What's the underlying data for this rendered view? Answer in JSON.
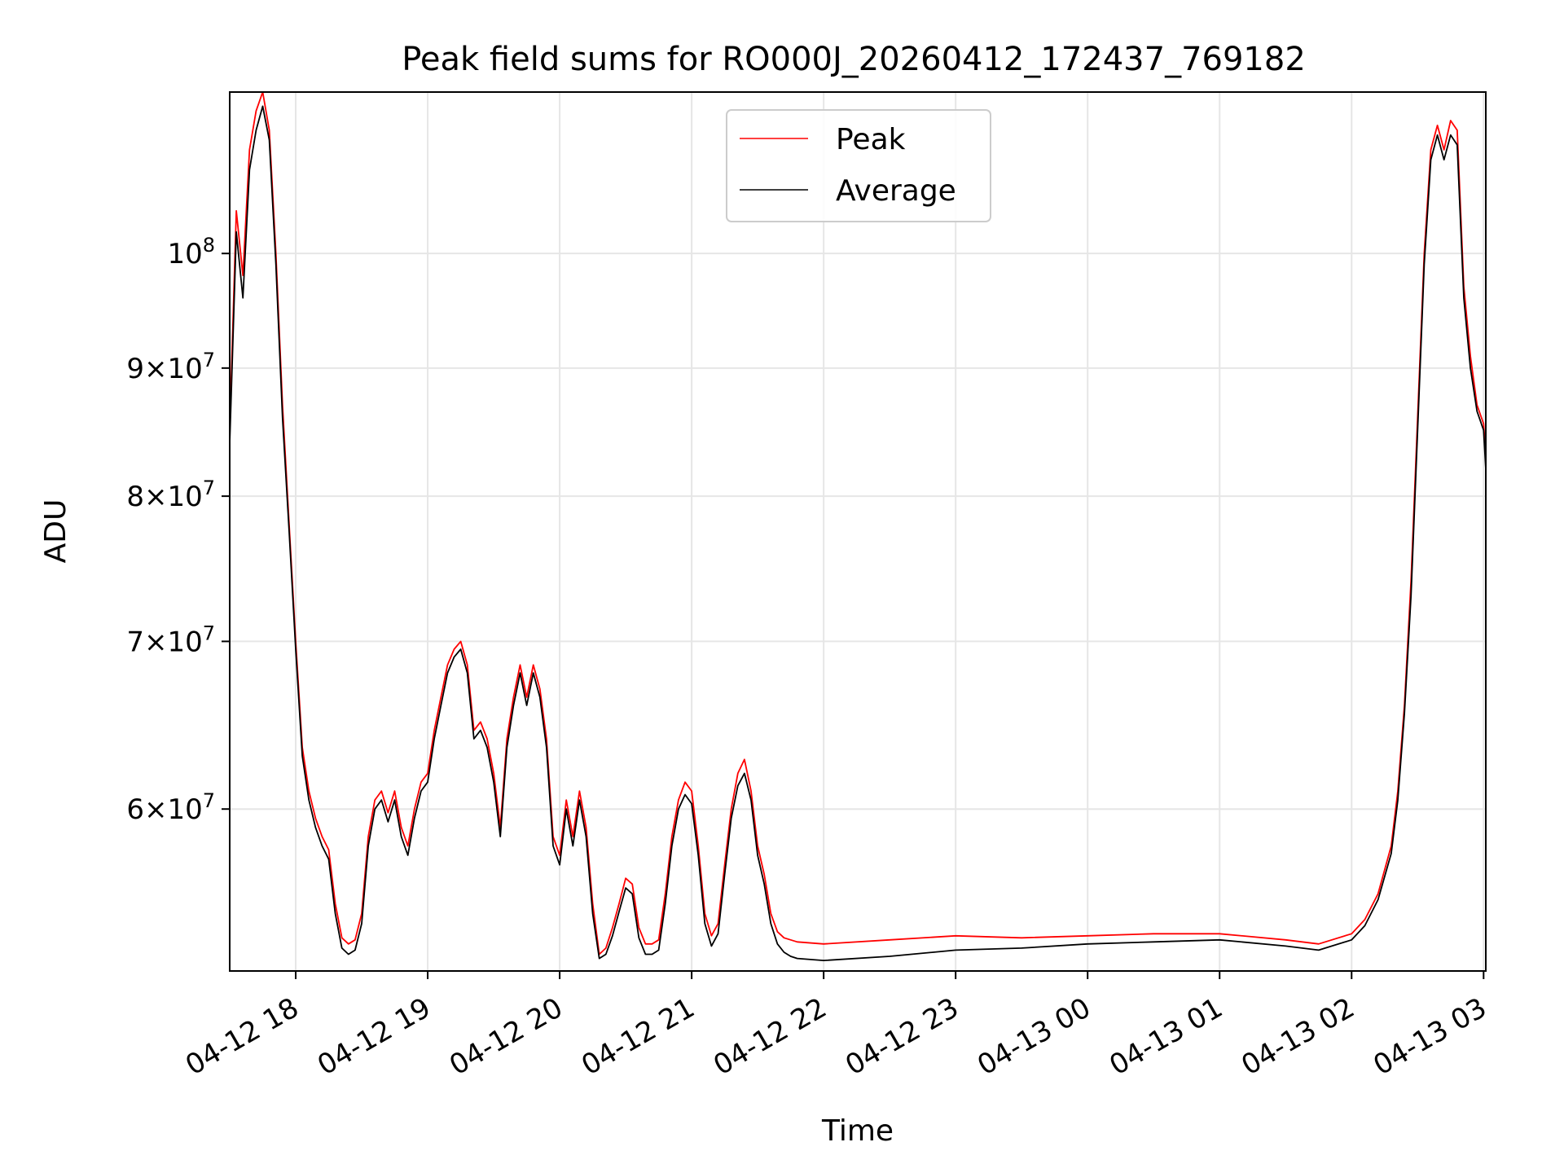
{
  "chart_data": {
    "type": "line",
    "title": "Peak field sums for RO000J_20260412_172437_769182",
    "xlabel": "Time",
    "ylabel": "ADU",
    "yscale": "log",
    "grid": true,
    "legend_position": "top-center",
    "x_range": [
      "2026-04-12 17:30",
      "2026-04-13 03:01"
    ],
    "y_range": [
      51700000,
      116000000
    ],
    "x_ticks": [
      {
        "t": "2026-04-12 18:00",
        "label": "04-12 18"
      },
      {
        "t": "2026-04-12 19:00",
        "label": "04-12 19"
      },
      {
        "t": "2026-04-12 20:00",
        "label": "04-12 20"
      },
      {
        "t": "2026-04-12 21:00",
        "label": "04-12 21"
      },
      {
        "t": "2026-04-12 22:00",
        "label": "04-12 22"
      },
      {
        "t": "2026-04-12 23:00",
        "label": "04-12 23"
      },
      {
        "t": "2026-04-13 00:00",
        "label": "04-13 00"
      },
      {
        "t": "2026-04-13 01:00",
        "label": "04-13 01"
      },
      {
        "t": "2026-04-13 02:00",
        "label": "04-13 02"
      },
      {
        "t": "2026-04-13 03:00",
        "label": "04-13 03"
      }
    ],
    "y_ticks": [
      {
        "value": 60000000,
        "mant": "6",
        "exp": "7"
      },
      {
        "value": 70000000,
        "mant": "7",
        "exp": "7"
      },
      {
        "value": 80000000,
        "mant": "8",
        "exp": "7"
      },
      {
        "value": 90000000,
        "mant": "9",
        "exp": "7"
      },
      {
        "value": 100000000,
        "mant": "",
        "exp": "8"
      }
    ],
    "series": [
      {
        "name": "Peak",
        "color": "#ff0000",
        "points": [
          [
            "2026-04-12 17:30",
            85000000
          ],
          [
            "2026-04-12 17:33",
            104000000
          ],
          [
            "2026-04-12 17:36",
            98000000
          ],
          [
            "2026-04-12 17:39",
            110000000
          ],
          [
            "2026-04-12 17:42",
            114000000
          ],
          [
            "2026-04-12 17:45",
            116000000
          ],
          [
            "2026-04-12 17:48",
            112000000
          ],
          [
            "2026-04-12 17:51",
            100000000
          ],
          [
            "2026-04-12 17:54",
            87000000
          ],
          [
            "2026-04-12 17:57",
            78000000
          ],
          [
            "2026-04-12 18:00",
            70000000
          ],
          [
            "2026-04-12 18:03",
            63500000
          ],
          [
            "2026-04-12 18:06",
            61000000
          ],
          [
            "2026-04-12 18:09",
            59500000
          ],
          [
            "2026-04-12 18:12",
            58500000
          ],
          [
            "2026-04-12 18:15",
            57800000
          ],
          [
            "2026-04-12 18:18",
            55000000
          ],
          [
            "2026-04-12 18:21",
            53300000
          ],
          [
            "2026-04-12 18:24",
            53000000
          ],
          [
            "2026-04-12 18:27",
            53200000
          ],
          [
            "2026-04-12 18:30",
            54500000
          ],
          [
            "2026-04-12 18:33",
            58500000
          ],
          [
            "2026-04-12 18:36",
            60500000
          ],
          [
            "2026-04-12 18:39",
            61000000
          ],
          [
            "2026-04-12 18:42",
            59800000
          ],
          [
            "2026-04-12 18:45",
            61000000
          ],
          [
            "2026-04-12 18:48",
            59000000
          ],
          [
            "2026-04-12 18:51",
            58000000
          ],
          [
            "2026-04-12 18:54",
            60000000
          ],
          [
            "2026-04-12 18:57",
            61500000
          ],
          [
            "2026-04-12 19:00",
            62000000
          ],
          [
            "2026-04-12 19:03",
            64500000
          ],
          [
            "2026-04-12 19:06",
            66500000
          ],
          [
            "2026-04-12 19:09",
            68500000
          ],
          [
            "2026-04-12 19:12",
            69500000
          ],
          [
            "2026-04-12 19:15",
            70000000
          ],
          [
            "2026-04-12 19:18",
            68500000
          ],
          [
            "2026-04-12 19:21",
            64500000
          ],
          [
            "2026-04-12 19:24",
            65000000
          ],
          [
            "2026-04-12 19:27",
            64000000
          ],
          [
            "2026-04-12 19:30",
            62000000
          ],
          [
            "2026-04-12 19:33",
            59000000
          ],
          [
            "2026-04-12 19:36",
            64000000
          ],
          [
            "2026-04-12 19:39",
            66500000
          ],
          [
            "2026-04-12 19:42",
            68500000
          ],
          [
            "2026-04-12 19:45",
            66500000
          ],
          [
            "2026-04-12 19:48",
            68500000
          ],
          [
            "2026-04-12 19:51",
            67000000
          ],
          [
            "2026-04-12 19:54",
            64000000
          ],
          [
            "2026-04-12 19:57",
            58500000
          ],
          [
            "2026-04-12 20:00",
            57500000
          ],
          [
            "2026-04-12 20:03",
            60500000
          ],
          [
            "2026-04-12 20:06",
            58500000
          ],
          [
            "2026-04-12 20:09",
            61000000
          ],
          [
            "2026-04-12 20:12",
            59000000
          ],
          [
            "2026-04-12 20:15",
            55000000
          ],
          [
            "2026-04-12 20:18",
            52500000
          ],
          [
            "2026-04-12 20:21",
            52800000
          ],
          [
            "2026-04-12 20:24",
            53800000
          ],
          [
            "2026-04-12 20:27",
            55000000
          ],
          [
            "2026-04-12 20:30",
            56300000
          ],
          [
            "2026-04-12 20:33",
            56000000
          ],
          [
            "2026-04-12 20:36",
            53800000
          ],
          [
            "2026-04-12 20:39",
            53000000
          ],
          [
            "2026-04-12 20:42",
            53000000
          ],
          [
            "2026-04-12 20:45",
            53200000
          ],
          [
            "2026-04-12 20:48",
            55500000
          ],
          [
            "2026-04-12 20:51",
            58500000
          ],
          [
            "2026-04-12 20:54",
            60500000
          ],
          [
            "2026-04-12 20:57",
            61500000
          ],
          [
            "2026-04-12 21:00",
            61000000
          ],
          [
            "2026-04-12 21:03",
            58000000
          ],
          [
            "2026-04-12 21:06",
            54500000
          ],
          [
            "2026-04-12 21:09",
            53400000
          ],
          [
            "2026-04-12 21:12",
            54000000
          ],
          [
            "2026-04-12 21:15",
            57000000
          ],
          [
            "2026-04-12 21:18",
            60000000
          ],
          [
            "2026-04-12 21:21",
            62000000
          ],
          [
            "2026-04-12 21:24",
            62800000
          ],
          [
            "2026-04-12 21:27",
            61000000
          ],
          [
            "2026-04-12 21:30",
            58000000
          ],
          [
            "2026-04-12 21:33",
            56500000
          ],
          [
            "2026-04-12 21:36",
            54500000
          ],
          [
            "2026-04-12 21:39",
            53600000
          ],
          [
            "2026-04-12 21:42",
            53300000
          ],
          [
            "2026-04-12 21:45",
            53200000
          ],
          [
            "2026-04-12 21:48",
            53100000
          ],
          [
            "2026-04-12 22:00",
            53000000
          ],
          [
            "2026-04-12 22:30",
            53200000
          ],
          [
            "2026-04-12 23:00",
            53400000
          ],
          [
            "2026-04-12 23:30",
            53300000
          ],
          [
            "2026-04-13 00:00",
            53400000
          ],
          [
            "2026-04-13 00:30",
            53500000
          ],
          [
            "2026-04-13 01:00",
            53500000
          ],
          [
            "2026-04-13 01:30",
            53200000
          ],
          [
            "2026-04-13 01:45",
            53000000
          ],
          [
            "2026-04-13 02:00",
            53500000
          ],
          [
            "2026-04-13 02:06",
            54200000
          ],
          [
            "2026-04-13 02:12",
            55500000
          ],
          [
            "2026-04-13 02:18",
            58000000
          ],
          [
            "2026-04-13 02:21",
            61000000
          ],
          [
            "2026-04-13 02:24",
            66000000
          ],
          [
            "2026-04-13 02:27",
            74000000
          ],
          [
            "2026-04-13 02:30",
            86000000
          ],
          [
            "2026-04-13 02:33",
            100000000
          ],
          [
            "2026-04-13 02:36",
            110000000
          ],
          [
            "2026-04-13 02:39",
            112500000
          ],
          [
            "2026-04-13 02:42",
            110000000
          ],
          [
            "2026-04-13 02:45",
            113000000
          ],
          [
            "2026-04-13 02:48",
            112000000
          ],
          [
            "2026-04-13 02:51",
            97000000
          ],
          [
            "2026-04-13 02:54",
            91000000
          ],
          [
            "2026-04-13 02:57",
            87000000
          ],
          [
            "2026-04-13 03:00",
            85500000
          ],
          [
            "2026-04-13 03:01",
            83000000
          ]
        ]
      },
      {
        "name": "Average",
        "color": "#000000",
        "points": [
          [
            "2026-04-12 17:30",
            84000000
          ],
          [
            "2026-04-12 17:33",
            102000000
          ],
          [
            "2026-04-12 17:36",
            96000000
          ],
          [
            "2026-04-12 17:39",
            108000000
          ],
          [
            "2026-04-12 17:42",
            112000000
          ],
          [
            "2026-04-12 17:45",
            114500000
          ],
          [
            "2026-04-12 17:48",
            111000000
          ],
          [
            "2026-04-12 17:51",
            99000000
          ],
          [
            "2026-04-12 17:54",
            86000000
          ],
          [
            "2026-04-12 17:57",
            77500000
          ],
          [
            "2026-04-12 18:00",
            69500000
          ],
          [
            "2026-04-12 18:03",
            63000000
          ],
          [
            "2026-04-12 18:06",
            60500000
          ],
          [
            "2026-04-12 18:09",
            59000000
          ],
          [
            "2026-04-12 18:12",
            58000000
          ],
          [
            "2026-04-12 18:15",
            57300000
          ],
          [
            "2026-04-12 18:18",
            54500000
          ],
          [
            "2026-04-12 18:21",
            52800000
          ],
          [
            "2026-04-12 18:24",
            52500000
          ],
          [
            "2026-04-12 18:27",
            52700000
          ],
          [
            "2026-04-12 18:30",
            54000000
          ],
          [
            "2026-04-12 18:33",
            58000000
          ],
          [
            "2026-04-12 18:36",
            60000000
          ],
          [
            "2026-04-12 18:39",
            60500000
          ],
          [
            "2026-04-12 18:42",
            59300000
          ],
          [
            "2026-04-12 18:45",
            60500000
          ],
          [
            "2026-04-12 18:48",
            58500000
          ],
          [
            "2026-04-12 18:51",
            57500000
          ],
          [
            "2026-04-12 18:54",
            59500000
          ],
          [
            "2026-04-12 18:57",
            61000000
          ],
          [
            "2026-04-12 19:00",
            61500000
          ],
          [
            "2026-04-12 19:03",
            64000000
          ],
          [
            "2026-04-12 19:06",
            66000000
          ],
          [
            "2026-04-12 19:09",
            68000000
          ],
          [
            "2026-04-12 19:12",
            69000000
          ],
          [
            "2026-04-12 19:15",
            69500000
          ],
          [
            "2026-04-12 19:18",
            68000000
          ],
          [
            "2026-04-12 19:21",
            64000000
          ],
          [
            "2026-04-12 19:24",
            64500000
          ],
          [
            "2026-04-12 19:27",
            63500000
          ],
          [
            "2026-04-12 19:30",
            61500000
          ],
          [
            "2026-04-12 19:33",
            58500000
          ],
          [
            "2026-04-12 19:36",
            63500000
          ],
          [
            "2026-04-12 19:39",
            66000000
          ],
          [
            "2026-04-12 19:42",
            68000000
          ],
          [
            "2026-04-12 19:45",
            66000000
          ],
          [
            "2026-04-12 19:48",
            68000000
          ],
          [
            "2026-04-12 19:51",
            66500000
          ],
          [
            "2026-04-12 19:54",
            63500000
          ],
          [
            "2026-04-12 19:57",
            58000000
          ],
          [
            "2026-04-12 20:00",
            57000000
          ],
          [
            "2026-04-12 20:03",
            60000000
          ],
          [
            "2026-04-12 20:06",
            58000000
          ],
          [
            "2026-04-12 20:09",
            60500000
          ],
          [
            "2026-04-12 20:12",
            58500000
          ],
          [
            "2026-04-12 20:15",
            54500000
          ],
          [
            "2026-04-12 20:18",
            52300000
          ],
          [
            "2026-04-12 20:21",
            52500000
          ],
          [
            "2026-04-12 20:24",
            53400000
          ],
          [
            "2026-04-12 20:27",
            54600000
          ],
          [
            "2026-04-12 20:30",
            55800000
          ],
          [
            "2026-04-12 20:33",
            55500000
          ],
          [
            "2026-04-12 20:36",
            53300000
          ],
          [
            "2026-04-12 20:39",
            52500000
          ],
          [
            "2026-04-12 20:42",
            52500000
          ],
          [
            "2026-04-12 20:45",
            52700000
          ],
          [
            "2026-04-12 20:48",
            55000000
          ],
          [
            "2026-04-12 20:51",
            58000000
          ],
          [
            "2026-04-12 20:54",
            60000000
          ],
          [
            "2026-04-12 20:57",
            60800000
          ],
          [
            "2026-04-12 21:00",
            60300000
          ],
          [
            "2026-04-12 21:03",
            57500000
          ],
          [
            "2026-04-12 21:06",
            54000000
          ],
          [
            "2026-04-12 21:09",
            52900000
          ],
          [
            "2026-04-12 21:12",
            53500000
          ],
          [
            "2026-04-12 21:15",
            56500000
          ],
          [
            "2026-04-12 21:18",
            59500000
          ],
          [
            "2026-04-12 21:21",
            61300000
          ],
          [
            "2026-04-12 21:24",
            62000000
          ],
          [
            "2026-04-12 21:27",
            60500000
          ],
          [
            "2026-04-12 21:30",
            57500000
          ],
          [
            "2026-04-12 21:33",
            56000000
          ],
          [
            "2026-04-12 21:36",
            54000000
          ],
          [
            "2026-04-12 21:39",
            53000000
          ],
          [
            "2026-04-12 21:42",
            52600000
          ],
          [
            "2026-04-12 21:45",
            52400000
          ],
          [
            "2026-04-12 21:48",
            52300000
          ],
          [
            "2026-04-12 22:00",
            52200000
          ],
          [
            "2026-04-12 22:30",
            52400000
          ],
          [
            "2026-04-12 23:00",
            52700000
          ],
          [
            "2026-04-12 23:30",
            52800000
          ],
          [
            "2026-04-13 00:00",
            53000000
          ],
          [
            "2026-04-13 00:30",
            53100000
          ],
          [
            "2026-04-13 01:00",
            53200000
          ],
          [
            "2026-04-13 01:30",
            52900000
          ],
          [
            "2026-04-13 01:45",
            52700000
          ],
          [
            "2026-04-13 02:00",
            53200000
          ],
          [
            "2026-04-13 02:06",
            53900000
          ],
          [
            "2026-04-13 02:12",
            55200000
          ],
          [
            "2026-04-13 02:18",
            57600000
          ],
          [
            "2026-04-13 02:21",
            60500000
          ],
          [
            "2026-04-13 02:24",
            65500000
          ],
          [
            "2026-04-13 02:27",
            73000000
          ],
          [
            "2026-04-13 02:30",
            85000000
          ],
          [
            "2026-04-13 02:33",
            99000000
          ],
          [
            "2026-04-13 02:36",
            109000000
          ],
          [
            "2026-04-13 02:39",
            111500000
          ],
          [
            "2026-04-13 02:42",
            109000000
          ],
          [
            "2026-04-13 02:45",
            111500000
          ],
          [
            "2026-04-13 02:48",
            110500000
          ],
          [
            "2026-04-13 02:51",
            96000000
          ],
          [
            "2026-04-13 02:54",
            90000000
          ],
          [
            "2026-04-13 02:57",
            86500000
          ],
          [
            "2026-04-13 03:00",
            85000000
          ],
          [
            "2026-04-13 03:01",
            82000000
          ]
        ]
      }
    ]
  }
}
